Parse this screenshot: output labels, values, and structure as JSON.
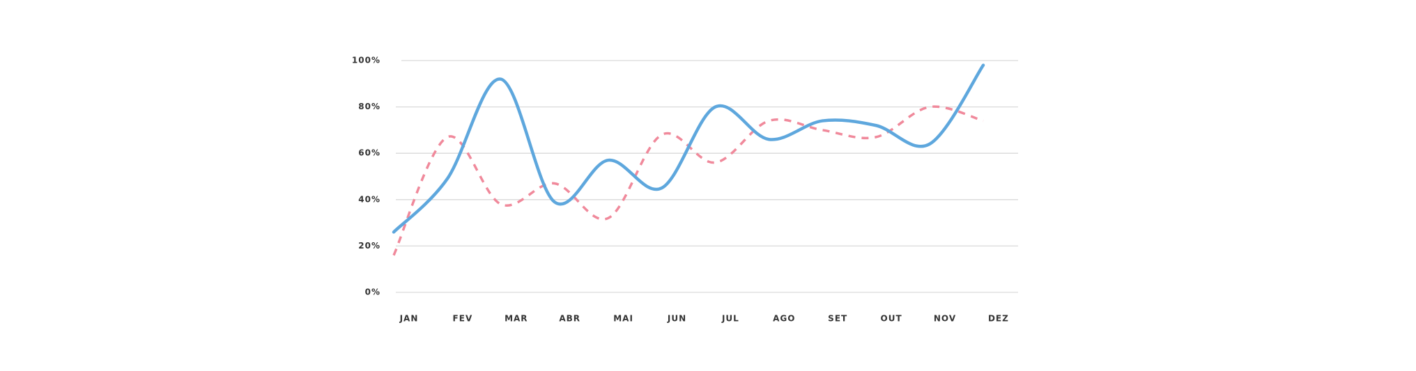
{
  "chart_data": {
    "type": "line",
    "categories": [
      "JAN",
      "FEV",
      "MAR",
      "ABR",
      "MAI",
      "JUN",
      "JUL",
      "AGO",
      "SET",
      "OUT",
      "NOV",
      "DEZ"
    ],
    "series": [
      {
        "color": "#5ea7dd",
        "dashed": false,
        "values": [
          26,
          49,
          92,
          39,
          57,
          45,
          80,
          66,
          74,
          72,
          64,
          98
        ]
      },
      {
        "color": "#f0899b",
        "dashed": true,
        "values": [
          16,
          67,
          38,
          47,
          32,
          68,
          56,
          74,
          70,
          67,
          80,
          74
        ]
      }
    ],
    "ylim": [
      0,
      100
    ],
    "yticks": [
      {
        "value": 0,
        "label": "0%"
      },
      {
        "value": 20,
        "label": "20%"
      },
      {
        "value": 40,
        "label": "40%"
      },
      {
        "value": 60,
        "label": "60%"
      },
      {
        "value": 80,
        "label": "80%"
      },
      {
        "value": 100,
        "label": "100%"
      }
    ],
    "grid": true,
    "smooth": true
  }
}
